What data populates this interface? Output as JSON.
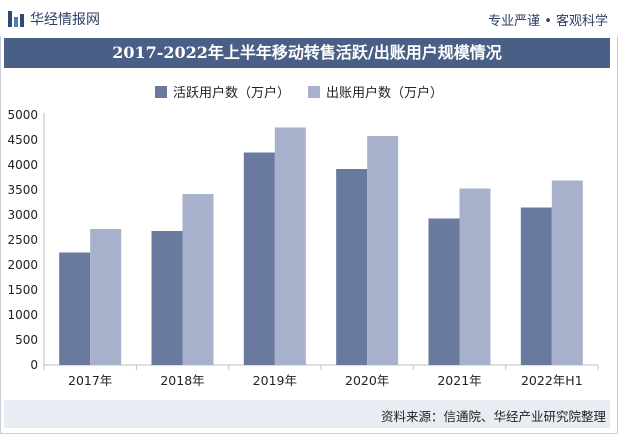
{
  "header": {
    "logo_text": "华经情报网",
    "tagline": "专业严谨 • 客观科学"
  },
  "chart_data": {
    "type": "bar",
    "title": "2017-2022年上半年移动转售活跃/出账用户规模情况",
    "categories": [
      "2017年",
      "2018年",
      "2019年",
      "2020年",
      "2021年",
      "2022年H1"
    ],
    "series": [
      {
        "name": "活跃用户数（万户）",
        "values": [
          2250,
          2680,
          4250,
          3920,
          2930,
          3150
        ],
        "color": "#6a7a9f"
      },
      {
        "name": "出账用户数（万户）",
        "values": [
          2720,
          3420,
          4750,
          4580,
          3530,
          3690
        ],
        "color": "#a7b1cc"
      }
    ],
    "ylim": [
      0,
      5000
    ],
    "yticks": [
      0,
      500,
      1000,
      1500,
      2000,
      2500,
      3000,
      3500,
      4000,
      4500,
      5000
    ],
    "xlabel": "",
    "ylabel": ""
  },
  "footer": {
    "source": "资料来源：信通院、华经产业研究院整理"
  }
}
